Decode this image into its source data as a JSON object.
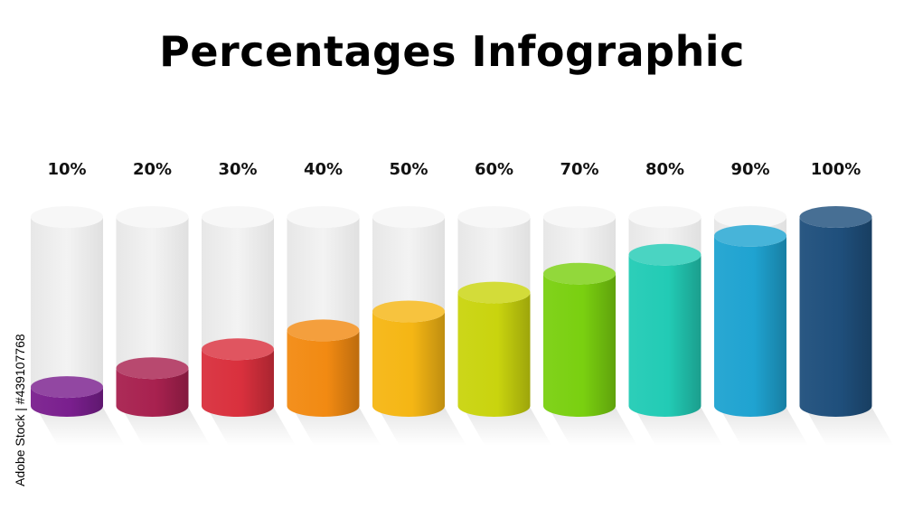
{
  "page": {
    "title": "Percentages Infographic",
    "watermark": "Adobe Stock | #439107768"
  },
  "chart_data": {
    "type": "bar",
    "title": "Percentages Infographic",
    "categories": [
      "10%",
      "20%",
      "30%",
      "40%",
      "50%",
      "60%",
      "70%",
      "80%",
      "90%",
      "100%"
    ],
    "values": [
      10,
      20,
      30,
      40,
      50,
      60,
      70,
      80,
      90,
      100
    ],
    "ylim": [
      0,
      100
    ],
    "grid": false,
    "bar_style": "3d-cylinder",
    "colors": [
      "#7a1f8e",
      "#a8214f",
      "#d9303d",
      "#f28a12",
      "#f5b614",
      "#c9d40e",
      "#7ad010",
      "#22cbb5",
      "#1fa3d1",
      "#1f4f7c"
    ],
    "track_color": "#eeeeee"
  }
}
